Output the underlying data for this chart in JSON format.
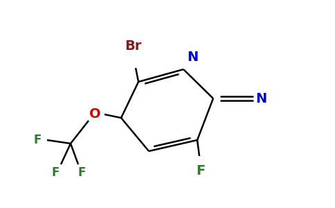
{
  "bg_color": "#ffffff",
  "ring_color": "#000000",
  "br_color": "#8b1a1a",
  "n_color": "#0000cc",
  "o_color": "#cc0000",
  "f_color": "#2d7a2d",
  "label_br": "Br",
  "label_n": "N",
  "label_o": "O",
  "label_f_cf3": "F",
  "label_f_ring": "F",
  "label_cn_n": "N",
  "figsize": [
    4.84,
    3.0
  ],
  "dpi": 100
}
